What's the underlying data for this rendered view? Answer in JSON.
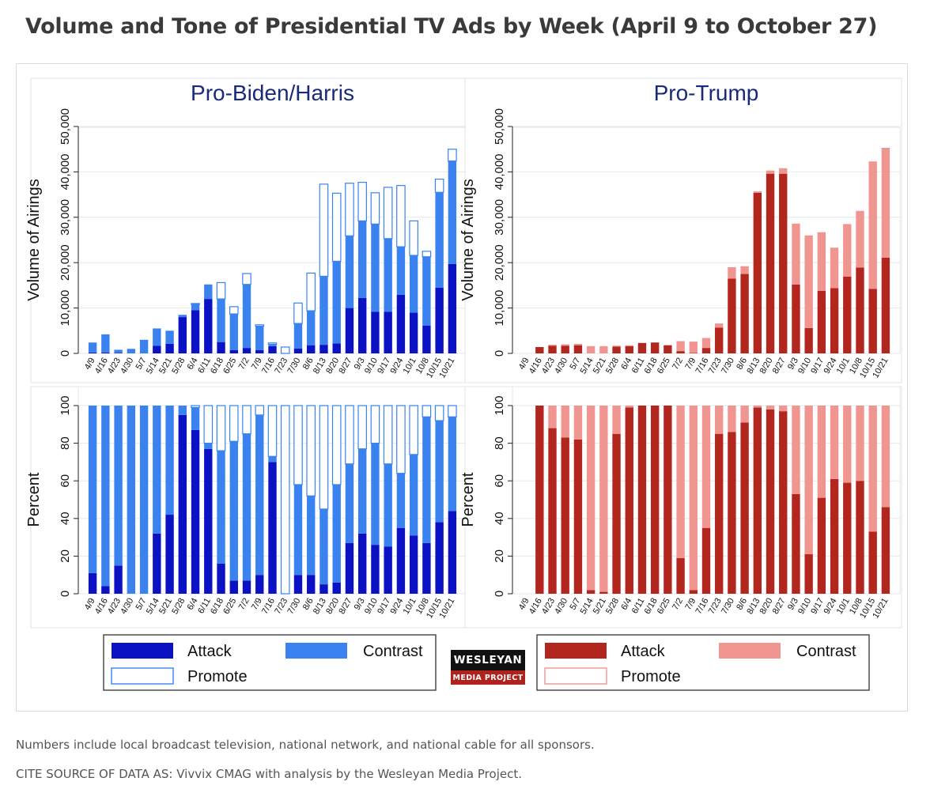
{
  "title": "Volume and Tone of Presidential TV Ads by Week (April 9 to October 27)",
  "notes": {
    "line1": "Numbers include local broadcast television, national network, and national cable for all sponsors.",
    "line2": "CITE SOURCE OF DATA AS: Vivvix CMAG with analysis by the Wesleyan Media Project."
  },
  "logo": {
    "top": "WESLEYAN",
    "bottom": "MEDIA PROJECT"
  },
  "colors": {
    "biden_attack": "#0a12c4",
    "biden_contrast": "#3a82f0",
    "trump_attack": "#b3261e",
    "trump_contrast": "#f09590",
    "promote_fill": "#ffffff"
  },
  "chart_data": [
    {
      "type": "bar",
      "stacked": true,
      "title": "Pro-Biden/Harris",
      "xlabel": "",
      "ylabel": "Volume of Airings",
      "ylim": [
        0,
        50000
      ],
      "yticks": [
        0,
        10000,
        20000,
        30000,
        40000,
        50000
      ],
      "ytick_labels": [
        "0",
        "10,000",
        "20,000",
        "30,000",
        "40,000",
        "50,000"
      ],
      "categories": [
        "4/9",
        "4/16",
        "4/23",
        "4/30",
        "5/7",
        "5/14",
        "5/21",
        "5/28",
        "6/4",
        "6/11",
        "6/18",
        "6/25",
        "7/2",
        "7/9",
        "7/16",
        "7/23",
        "7/30",
        "8/6",
        "8/13",
        "8/20",
        "8/27",
        "9/3",
        "9/10",
        "9/17",
        "9/24",
        "10/1",
        "10/8",
        "10/15",
        "10/21"
      ],
      "series": [
        {
          "name": "Attack",
          "values": [
            200,
            200,
            100,
            0,
            0,
            1700,
            2100,
            8000,
            9500,
            12000,
            2500,
            700,
            1200,
            700,
            1600,
            0,
            1100,
            1800,
            1900,
            2200,
            10000,
            12200,
            9200,
            9200,
            12900,
            9000,
            6100,
            14500,
            19700
          ]
        },
        {
          "name": "Contrast",
          "values": [
            2200,
            4000,
            700,
            1000,
            3000,
            3800,
            2900,
            500,
            1300,
            3200,
            9500,
            8000,
            14000,
            5300,
            400,
            0,
            5500,
            7600,
            15100,
            18100,
            15900,
            17000,
            19300,
            16100,
            10600,
            12600,
            15200,
            21000,
            22700
          ]
        },
        {
          "name": "Promote",
          "values": [
            0,
            0,
            0,
            0,
            0,
            0,
            0,
            0,
            200,
            0,
            3600,
            1600,
            2400,
            300,
            300,
            1400,
            4500,
            8300,
            20300,
            15000,
            11600,
            8500,
            6900,
            11300,
            13500,
            7600,
            1200,
            2900,
            2600
          ]
        }
      ]
    },
    {
      "type": "bar",
      "stacked": true,
      "title": "Pro-Trump",
      "xlabel": "",
      "ylabel": "Volume of Airings",
      "ylim": [
        0,
        50000
      ],
      "yticks": [
        0,
        10000,
        20000,
        30000,
        40000,
        50000
      ],
      "ytick_labels": [
        "0",
        "10,000",
        "20,000",
        "30,000",
        "40,000",
        "50,000"
      ],
      "categories": [
        "4/9",
        "4/16",
        "4/23",
        "4/30",
        "5/7",
        "5/14",
        "5/21",
        "5/28",
        "6/4",
        "6/11",
        "6/18",
        "6/25",
        "7/2",
        "7/9",
        "7/16",
        "7/23",
        "7/30",
        "8/6",
        "8/13",
        "8/20",
        "8/27",
        "9/3",
        "9/10",
        "9/17",
        "9/24",
        "10/1",
        "10/8",
        "10/15",
        "10/21"
      ],
      "series": [
        {
          "name": "Attack",
          "values": [
            0,
            1400,
            1700,
            1700,
            1800,
            0,
            0,
            1500,
            1600,
            2300,
            2400,
            1800,
            500,
            100,
            1200,
            5700,
            16500,
            17500,
            35400,
            39600,
            39600,
            15200,
            5600,
            13800,
            14400,
            16900,
            18900,
            14200,
            21100
          ]
        },
        {
          "name": "Contrast",
          "values": [
            0,
            0,
            200,
            300,
            300,
            1600,
            1600,
            200,
            200,
            0,
            0,
            0,
            2200,
            2500,
            2200,
            900,
            2500,
            1700,
            300,
            700,
            1200,
            13400,
            20400,
            12900,
            8900,
            11600,
            12500,
            28100,
            24200
          ]
        },
        {
          "name": "Promote",
          "values": [
            0,
            0,
            0,
            0,
            0,
            0,
            0,
            0,
            0,
            0,
            0,
            0,
            0,
            0,
            0,
            0,
            0,
            0,
            0,
            0,
            0,
            0,
            0,
            0,
            0,
            0,
            0,
            0,
            0
          ]
        }
      ]
    },
    {
      "type": "bar",
      "stacked": true,
      "title": "",
      "xlabel": "",
      "ylabel": "Percent",
      "ylim": [
        0,
        100
      ],
      "yticks": [
        0,
        20,
        40,
        60,
        80,
        100
      ],
      "ytick_labels": [
        "0",
        "20",
        "40",
        "60",
        "80",
        "100"
      ],
      "categories": [
        "4/9",
        "4/16",
        "4/23",
        "4/30",
        "5/7",
        "5/14",
        "5/21",
        "5/28",
        "6/4",
        "6/11",
        "6/18",
        "6/25",
        "7/2",
        "7/9",
        "7/16",
        "7/23",
        "7/30",
        "8/6",
        "8/13",
        "8/20",
        "8/27",
        "9/3",
        "9/10",
        "9/17",
        "9/24",
        "10/1",
        "10/8",
        "10/15",
        "10/21"
      ],
      "series": [
        {
          "name": "Attack",
          "values": [
            11,
            4,
            15,
            0,
            0,
            32,
            42,
            95,
            87,
            77,
            16,
            7,
            7,
            10,
            70,
            0,
            10,
            10,
            5,
            6,
            27,
            32,
            26,
            25,
            35,
            31,
            27,
            38,
            44
          ]
        },
        {
          "name": "Contrast",
          "values": [
            89,
            96,
            85,
            100,
            100,
            68,
            58,
            5,
            12,
            3,
            60,
            74,
            78,
            85,
            3,
            0,
            48,
            42,
            40,
            52,
            42,
            45,
            54,
            44,
            29,
            43,
            67,
            54,
            50
          ]
        },
        {
          "name": "Promote",
          "values": [
            0,
            0,
            0,
            0,
            0,
            0,
            0,
            0,
            1,
            20,
            24,
            19,
            15,
            5,
            27,
            100,
            42,
            48,
            55,
            42,
            31,
            23,
            20,
            31,
            36,
            26,
            6,
            8,
            6
          ]
        }
      ]
    },
    {
      "type": "bar",
      "stacked": true,
      "title": "",
      "xlabel": "",
      "ylabel": "Percent",
      "ylim": [
        0,
        100
      ],
      "yticks": [
        0,
        20,
        40,
        60,
        80,
        100
      ],
      "ytick_labels": [
        "0",
        "20",
        "40",
        "60",
        "80",
        "100"
      ],
      "categories": [
        "4/9",
        "4/16",
        "4/23",
        "4/30",
        "5/7",
        "5/14",
        "5/21",
        "5/28",
        "6/4",
        "6/11",
        "6/18",
        "6/25",
        "7/2",
        "7/9",
        "7/16",
        "7/23",
        "7/30",
        "8/6",
        "8/13",
        "8/20",
        "8/27",
        "9/3",
        "9/10",
        "9/17",
        "9/24",
        "10/1",
        "10/8",
        "10/15",
        "10/21"
      ],
      "series": [
        {
          "name": "Attack",
          "values": [
            0,
            100,
            88,
            83,
            82,
            2,
            1,
            85,
            99,
            100,
            100,
            100,
            19,
            2,
            35,
            85,
            86,
            91,
            99,
            98,
            97,
            53,
            21,
            51,
            61,
            59,
            60,
            33,
            46
          ]
        },
        {
          "name": "Contrast",
          "values": [
            0,
            0,
            12,
            17,
            18,
            98,
            99,
            15,
            1,
            0,
            0,
            0,
            81,
            98,
            65,
            15,
            14,
            9,
            1,
            2,
            3,
            47,
            79,
            49,
            39,
            41,
            40,
            67,
            54
          ]
        },
        {
          "name": "Promote",
          "values": [
            0,
            0,
            0,
            0,
            0,
            0,
            0,
            0,
            0,
            0,
            0,
            0,
            0,
            0,
            0,
            0,
            0,
            0,
            0,
            0,
            0,
            0,
            0,
            0,
            0,
            0,
            0,
            0,
            0
          ]
        }
      ]
    }
  ],
  "legends": [
    {
      "items": [
        "Attack",
        "Contrast",
        "Promote"
      ]
    },
    {
      "items": [
        "Attack",
        "Contrast",
        "Promote"
      ]
    }
  ]
}
